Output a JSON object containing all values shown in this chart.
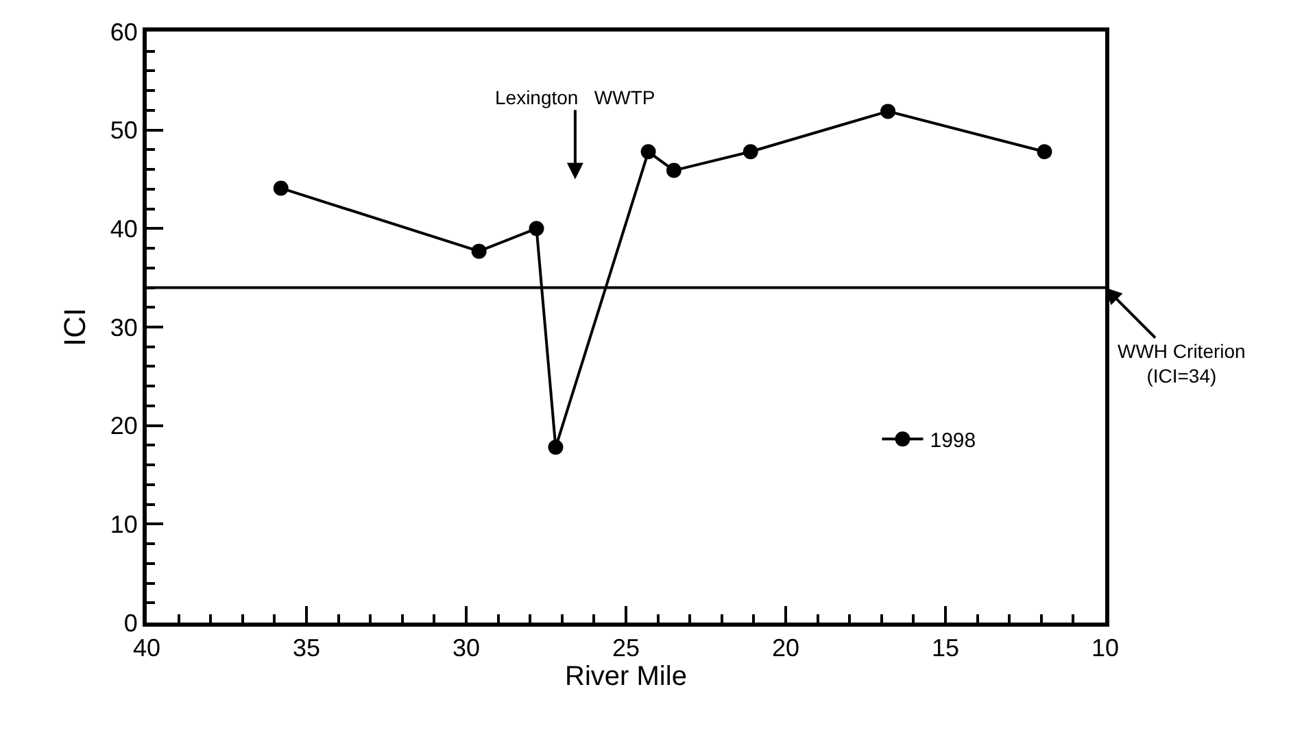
{
  "chart_data": {
    "type": "line",
    "xlabel": "River Mile",
    "ylabel": "ICI",
    "x": [
      35.8,
      29.6,
      27.8,
      27.2,
      24.3,
      23.5,
      21.1,
      16.8,
      11.9
    ],
    "series": [
      {
        "name": "1998",
        "color": "#000000",
        "values": [
          44.1,
          37.7,
          40.0,
          17.8,
          47.8,
          45.9,
          47.8,
          51.9,
          47.8
        ]
      }
    ],
    "xlim": [
      40,
      10
    ],
    "xticks": [
      40,
      35,
      30,
      25,
      20,
      15,
      10
    ],
    "ylim": [
      0,
      60
    ],
    "yticks": [
      0,
      10,
      20,
      30,
      40,
      50,
      60
    ],
    "ref_lines": [
      {
        "axis": "y",
        "value": 34,
        "color": "#000000",
        "line_style": "solid"
      }
    ],
    "annotations": [
      "Lexington   WWTP",
      {
        "text": "WWH Criterion\n(ICI=34)",
        "x": 10,
        "y": 34
      }
    ],
    "marker": "circle",
    "line_style": "solid",
    "legend": "right"
  }
}
